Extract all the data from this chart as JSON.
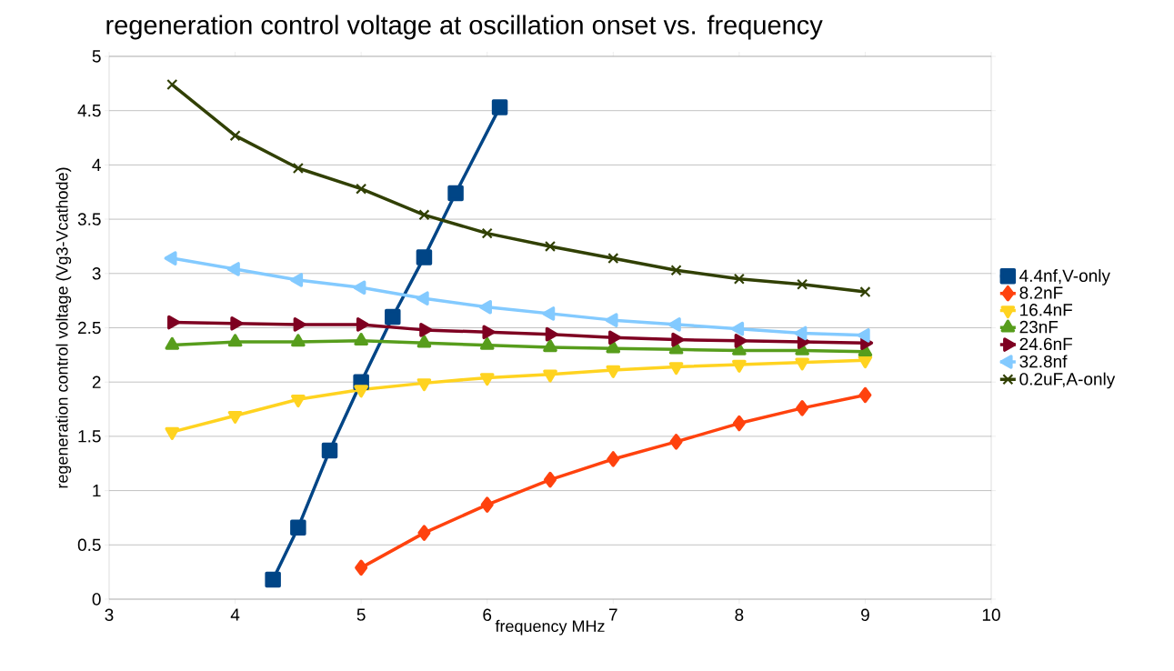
{
  "chart_data": {
    "type": "line",
    "title": "regeneration control voltage at oscillation onset vs. frequency",
    "xlabel": "frequency MHz",
    "ylabel": "regeneration control voltage (Vg3-Vcathode)",
    "xlim": [
      3,
      10
    ],
    "xticks": [
      3,
      4,
      5,
      6,
      7,
      8,
      9,
      10
    ],
    "ylim": [
      0,
      5
    ],
    "yticks": [
      0,
      0.5,
      1,
      1.5,
      2,
      2.5,
      3,
      3.5,
      4,
      4.5,
      5
    ],
    "grid": "y",
    "legend": "right",
    "line_style": "solid",
    "series": [
      {
        "name": "4.4nf,V-only",
        "color": "#004586",
        "marker": "square",
        "x": [
          4.3,
          4.5,
          4.75,
          5,
          5.25,
          5.5,
          5.75,
          6.1
        ],
        "values": [
          0.18,
          0.66,
          1.37,
          2.0,
          2.6,
          3.15,
          3.74,
          4.53
        ]
      },
      {
        "name": "8.2nF",
        "color": "#ff420e",
        "marker": "diamond",
        "x": [
          5,
          5.5,
          6,
          6.5,
          7,
          7.5,
          8,
          8.5,
          9
        ],
        "values": [
          0.29,
          0.61,
          0.87,
          1.1,
          1.29,
          1.45,
          1.62,
          1.76,
          1.88
        ]
      },
      {
        "name": "16.4nF",
        "color": "#ffd320",
        "marker": "triangle-down",
        "x": [
          3.5,
          4,
          4.5,
          5,
          5.5,
          6,
          6.5,
          7,
          7.5,
          8,
          8.5,
          9
        ],
        "values": [
          1.54,
          1.69,
          1.84,
          1.93,
          1.99,
          2.04,
          2.07,
          2.11,
          2.14,
          2.16,
          2.18,
          2.2
        ]
      },
      {
        "name": "23nF",
        "color": "#579d1c",
        "marker": "triangle",
        "x": [
          3.5,
          4,
          4.5,
          5,
          5.5,
          6,
          6.5,
          7,
          7.5,
          8,
          8.5,
          9
        ],
        "values": [
          2.34,
          2.37,
          2.37,
          2.38,
          2.36,
          2.34,
          2.32,
          2.31,
          2.3,
          2.29,
          2.29,
          2.28
        ]
      },
      {
        "name": "24.6nF",
        "color": "#7e0021",
        "marker": "triangle-right",
        "x": [
          3.5,
          4,
          4.5,
          5,
          5.5,
          6,
          6.5,
          7,
          7.5,
          8,
          8.5,
          9
        ],
        "values": [
          2.55,
          2.54,
          2.53,
          2.53,
          2.48,
          2.46,
          2.44,
          2.41,
          2.39,
          2.38,
          2.37,
          2.36
        ]
      },
      {
        "name": "32.8nf",
        "color": "#83caff",
        "marker": "triangle-left",
        "x": [
          3.5,
          4,
          4.5,
          5,
          5.5,
          6,
          6.5,
          7,
          7.5,
          8,
          8.5,
          9
        ],
        "values": [
          3.14,
          3.04,
          2.94,
          2.87,
          2.77,
          2.69,
          2.63,
          2.57,
          2.53,
          2.49,
          2.45,
          2.43
        ]
      },
      {
        "name": "0.2uF,A-only",
        "color": "#314004",
        "marker": "cross",
        "x": [
          3.5,
          4,
          4.5,
          5,
          5.5,
          6,
          6.5,
          7,
          7.5,
          8,
          8.5,
          9
        ],
        "values": [
          4.74,
          4.27,
          3.97,
          3.78,
          3.54,
          3.37,
          3.25,
          3.14,
          3.03,
          2.95,
          2.9,
          2.83
        ]
      }
    ]
  }
}
